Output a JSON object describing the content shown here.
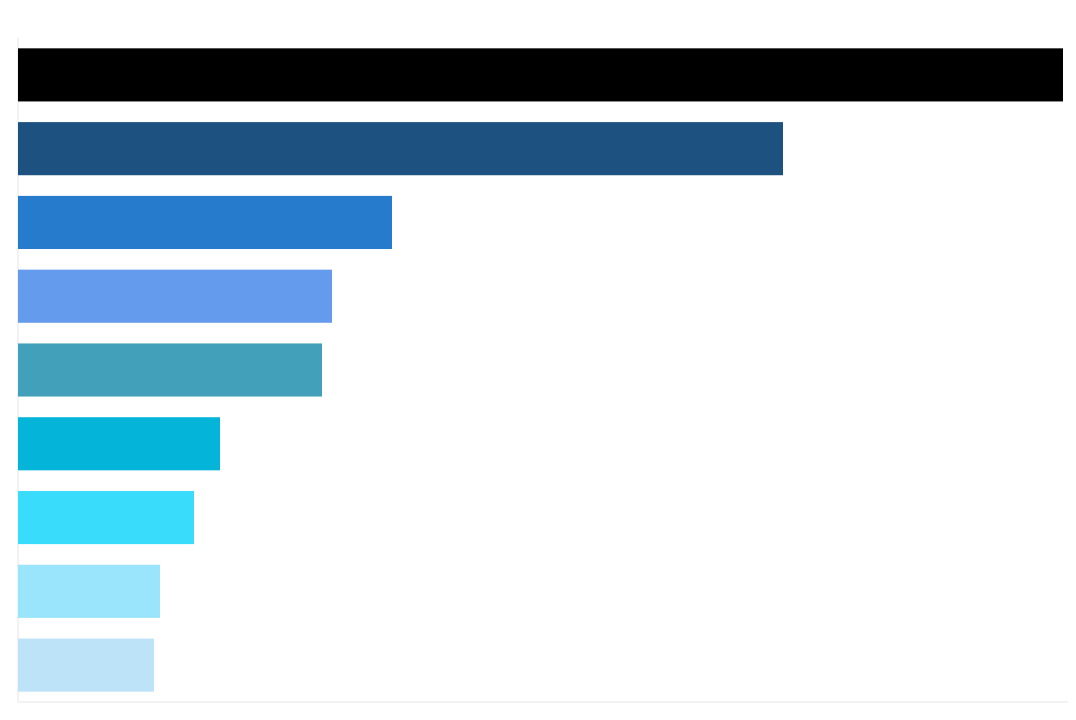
{
  "chart_data": {
    "type": "bar",
    "orientation": "horizontal",
    "categories": [
      null,
      null,
      null,
      null,
      null,
      null,
      null,
      null,
      null
    ],
    "values": [
      1045,
      765,
      374,
      314,
      304,
      202,
      176,
      142,
      136
    ],
    "colors": [
      "#000000",
      "#1c5180",
      "#277bcd",
      "#659bec",
      "#42a0bb",
      "#05b4d9",
      "#3adcfb",
      "#9ae5fb",
      "#bde3f8"
    ],
    "xlim": [
      0,
      1050
    ]
  }
}
